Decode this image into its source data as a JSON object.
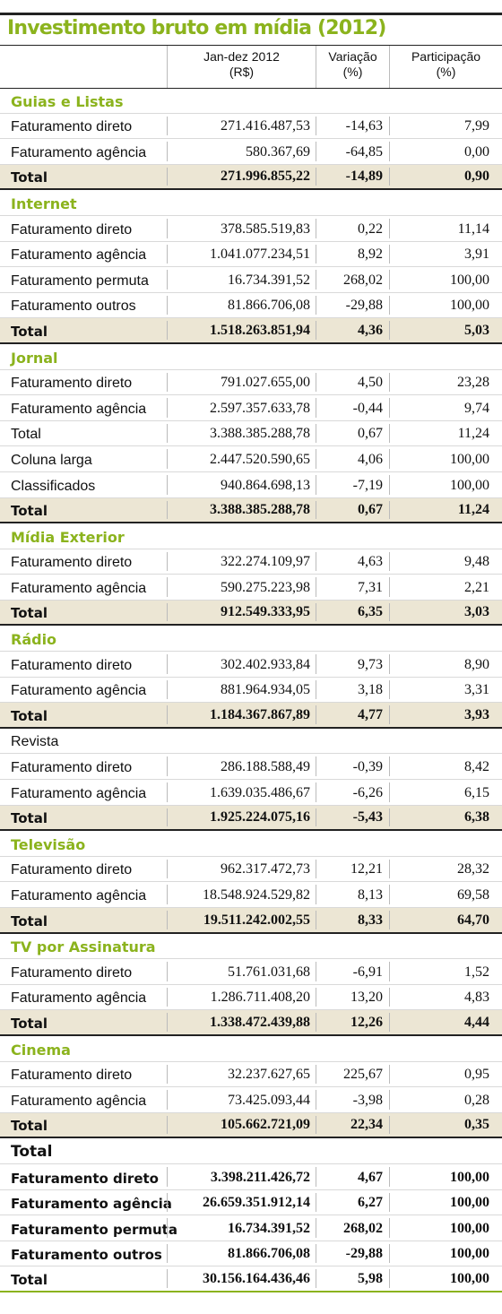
{
  "title": "Investimento bruto em mídia (2012)",
  "headers": {
    "col1": [
      "Jan-dez 2012",
      "(R$)"
    ],
    "col2": [
      "Variação",
      "(%)"
    ],
    "col3": [
      "Participação",
      "(%)"
    ]
  },
  "colors": {
    "accent": "#8bb31d",
    "total_bg": "#ece6d4"
  },
  "rows": [
    {
      "type": "section",
      "label": "Guias e Listas"
    },
    {
      "type": "row",
      "label": "Faturamento direto",
      "v": "271.416.487,53",
      "var": "-14,63",
      "part": "7,99"
    },
    {
      "type": "row",
      "label": "Faturamento agência",
      "v": "580.367,69",
      "var": "-64,85",
      "part": "0,00"
    },
    {
      "type": "total",
      "label": "Total",
      "v": "271.996.855,22",
      "var": "-14,89",
      "part": "0,90"
    },
    {
      "type": "section",
      "label": "Internet"
    },
    {
      "type": "row",
      "label": "Faturamento direto",
      "v": "378.585.519,83",
      "var": "0,22",
      "part": "11,14"
    },
    {
      "type": "row",
      "label": "Faturamento agência",
      "v": "1.041.077.234,51",
      "var": "8,92",
      "part": "3,91"
    },
    {
      "type": "row",
      "label": "Faturamento permuta",
      "v": "16.734.391,52",
      "var": "268,02",
      "part": "100,00"
    },
    {
      "type": "row",
      "label": "Faturamento outros",
      "v": "81.866.706,08",
      "var": "-29,88",
      "part": "100,00"
    },
    {
      "type": "total",
      "label": "Total",
      "v": "1.518.263.851,94",
      "var": "4,36",
      "part": "5,03"
    },
    {
      "type": "section",
      "label": "Jornal"
    },
    {
      "type": "row",
      "label": "Faturamento direto",
      "v": "791.027.655,00",
      "var": "4,50",
      "part": "23,28"
    },
    {
      "type": "row",
      "label": "Faturamento agência",
      "v": "2.597.357.633,78",
      "var": "-0,44",
      "part": "9,74"
    },
    {
      "type": "row",
      "label": "Total",
      "v": "3.388.385.288,78",
      "var": "0,67",
      "part": "11,24"
    },
    {
      "type": "row",
      "label": "Coluna larga",
      "v": "2.447.520.590,65",
      "var": "4,06",
      "part": "100,00"
    },
    {
      "type": "row",
      "label": "Classificados",
      "v": "940.864.698,13",
      "var": "-7,19",
      "part": "100,00"
    },
    {
      "type": "total",
      "label": "Total",
      "v": "3.388.385.288,78",
      "var": "0,67",
      "part": "11,24"
    },
    {
      "type": "section",
      "label": "Mídia Exterior"
    },
    {
      "type": "row",
      "label": "Faturamento direto",
      "v": "322.274.109,97",
      "var": "4,63",
      "part": "9,48"
    },
    {
      "type": "row",
      "label": "Faturamento agência",
      "v": "590.275.223,98",
      "var": "7,31",
      "part": "2,21"
    },
    {
      "type": "total",
      "label": "Total",
      "v": "912.549.333,95",
      "var": "6,35",
      "part": "3,03"
    },
    {
      "type": "section",
      "label": "Rádio"
    },
    {
      "type": "row",
      "label": "Faturamento direto",
      "v": "302.402.933,84",
      "var": "9,73",
      "part": "8,90"
    },
    {
      "type": "row",
      "label": "Faturamento agência",
      "v": "881.964.934,05",
      "var": "3,18",
      "part": "3,31"
    },
    {
      "type": "total",
      "label": "Total",
      "v": "1.184.367.867,89",
      "var": "4,77",
      "part": "3,93"
    },
    {
      "type": "section-plain",
      "label": "Revista"
    },
    {
      "type": "row",
      "label": "Faturamento direto",
      "v": "286.188.588,49",
      "var": "-0,39",
      "part": "8,42"
    },
    {
      "type": "row",
      "label": "Faturamento agência",
      "v": "1.639.035.486,67",
      "var": "-6,26",
      "part": "6,15"
    },
    {
      "type": "total",
      "label": "Total",
      "v": "1.925.224.075,16",
      "var": "-5,43",
      "part": "6,38"
    },
    {
      "type": "section",
      "label": "Televisão"
    },
    {
      "type": "row",
      "label": "Faturamento direto",
      "v": "962.317.472,73",
      "var": "12,21",
      "part": "28,32"
    },
    {
      "type": "row",
      "label": "Faturamento agência",
      "v": "18.548.924.529,82",
      "var": "8,13",
      "part": "69,58"
    },
    {
      "type": "total",
      "label": "Total",
      "v": "19.511.242.002,55",
      "var": "8,33",
      "part": "64,70"
    },
    {
      "type": "section",
      "label": "TV por Assinatura"
    },
    {
      "type": "row",
      "label": "Faturamento direto",
      "v": "51.761.031,68",
      "var": "-6,91",
      "part": "1,52"
    },
    {
      "type": "row",
      "label": "Faturamento agência",
      "v": "1.286.711.408,20",
      "var": "13,20",
      "part": "4,83"
    },
    {
      "type": "total",
      "label": "Total",
      "v": "1.338.472.439,88",
      "var": "12,26",
      "part": "4,44"
    },
    {
      "type": "section",
      "label": "Cinema"
    },
    {
      "type": "row",
      "label": "Faturamento direto",
      "v": "32.237.627,65",
      "var": "225,67",
      "part": "0,95"
    },
    {
      "type": "row",
      "label": "Faturamento agência",
      "v": "73.425.093,44",
      "var": "-3,98",
      "part": "0,28"
    },
    {
      "type": "total",
      "label": "Total",
      "v": "105.662.721,09",
      "var": "22,34",
      "part": "0,35"
    },
    {
      "type": "section-black",
      "label": "Total"
    },
    {
      "type": "bold",
      "label": "Faturamento direto",
      "v": "3.398.211.426,72",
      "var": "4,67",
      "part": "100,00"
    },
    {
      "type": "bold",
      "label": "Faturamento agência",
      "v": "26.659.351.912,14",
      "var": "6,27",
      "part": "100,00"
    },
    {
      "type": "bold",
      "label": "Faturamento permuta",
      "v": "16.734.391,52",
      "var": "268,02",
      "part": "100,00"
    },
    {
      "type": "bold",
      "label": "Faturamento outros",
      "v": "81.866.706,08",
      "var": "-29,88",
      "part": "100,00"
    },
    {
      "type": "grand",
      "label": "Total",
      "v": "30.156.164.436,46",
      "var": "5,98",
      "part": "100,00"
    }
  ]
}
